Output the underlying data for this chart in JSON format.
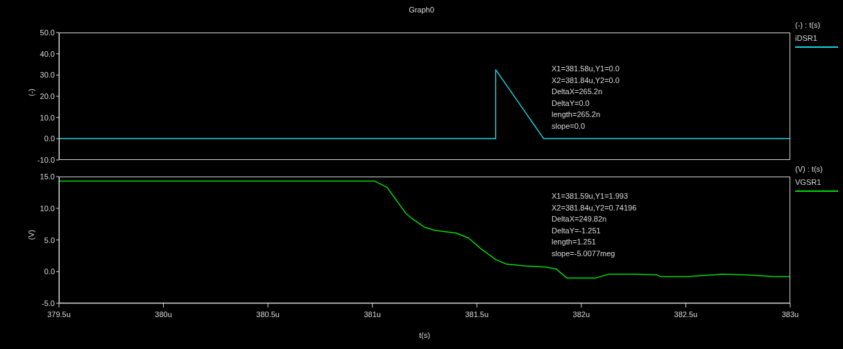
{
  "chart_data": [
    {
      "type": "line",
      "title": "Graph0",
      "ylabel": "(-)",
      "legend_title": "(-) : t(s)",
      "legend": "right",
      "marker": "none",
      "line_style": "solid",
      "tick_labels": "y",
      "x": [
        379.5,
        381.59,
        381.59,
        381.82,
        383
      ],
      "series": [
        {
          "name": "iDSR1",
          "color": "#19d3e0",
          "values": [
            0,
            0,
            32.5,
            0,
            0
          ]
        }
      ],
      "xlim": [
        379.5,
        383
      ],
      "ylim": [
        -10,
        50
      ],
      "yticks": [
        {
          "value": -10,
          "label": "-10.0"
        },
        {
          "value": 0,
          "label": "0.0"
        },
        {
          "value": 10,
          "label": "10.0"
        },
        {
          "value": 20,
          "label": "20.0"
        },
        {
          "value": 30,
          "label": "30.0"
        },
        {
          "value": 40,
          "label": "40.0"
        },
        {
          "value": 50,
          "label": "50.0"
        }
      ],
      "annotations": [
        "X1=381.58u,Y1=0.0",
        "X2=381.84u,Y2=0.0",
        "DeltaX=265.2n",
        "DeltaY=0.0",
        "length=265.2n",
        "slope=0.0"
      ]
    },
    {
      "type": "line",
      "xlabel": "t(s)",
      "ylabel": "(V)",
      "legend_title": "(V) : t(s)",
      "legend": "right",
      "marker": "none",
      "line_style": "solid",
      "x": [
        379.5,
        381.01,
        381.07,
        381.16,
        381.18,
        381.21,
        381.25,
        381.3,
        381.4,
        381.46,
        381.52,
        381.59,
        381.64,
        381.73,
        381.83,
        381.88,
        381.93,
        382.07,
        382.13,
        382.25,
        382.36,
        382.38,
        382.51,
        382.67,
        382.77,
        382.84,
        382.92,
        383
      ],
      "series": [
        {
          "name": "VGSR1",
          "color": "#00dd00",
          "values": [
            14.3,
            14.3,
            13.3,
            9.2,
            8.6,
            7.9,
            7.0,
            6.5,
            6.1,
            5.3,
            3.6,
            1.9,
            1.2,
            0.9,
            0.7,
            0.4,
            -1.0,
            -1.0,
            -0.4,
            -0.4,
            -0.5,
            -0.8,
            -0.8,
            -0.4,
            -0.5,
            -0.6,
            -0.8,
            -0.8
          ]
        }
      ],
      "xlim": [
        379.5,
        383
      ],
      "xticks": [
        {
          "value": 379.5,
          "label": "379.5u"
        },
        {
          "value": 380,
          "label": "380u"
        },
        {
          "value": 380.5,
          "label": "380.5u"
        },
        {
          "value": 381,
          "label": "381u"
        },
        {
          "value": 381.5,
          "label": "381.5u"
        },
        {
          "value": 382,
          "label": "382u"
        },
        {
          "value": 382.5,
          "label": "382.5u"
        },
        {
          "value": 383,
          "label": "383u"
        }
      ],
      "ylim": [
        -5,
        15
      ],
      "yticks": [
        {
          "value": -5,
          "label": "-5.0"
        },
        {
          "value": 0,
          "label": "0.0"
        },
        {
          "value": 5,
          "label": "5.0"
        },
        {
          "value": 10,
          "label": "10.0"
        },
        {
          "value": 15,
          "label": "15.0"
        }
      ],
      "annotations": [
        "X1=381.59u,Y1=1.993",
        "X2=381.84u,Y2=0.74196",
        "DeltaX=249.82n",
        "DeltaY=-1.251",
        "length=1.251",
        "slope=-5.0077meg"
      ]
    }
  ]
}
